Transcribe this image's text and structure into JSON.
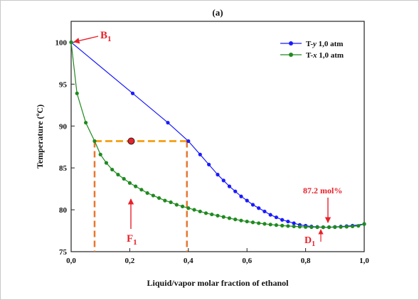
{
  "chart_data": {
    "type": "line",
    "title": "(a)",
    "xlabel": "Liquid/vapor molar fraction of ethanol",
    "ylabel": "Temperature (ºC)",
    "xlim": [
      0,
      1
    ],
    "ylim": [
      75,
      102.5
    ],
    "x_ticks": [
      "0,0",
      "0,2",
      "0,4",
      "0,6",
      "0,8",
      "1,0"
    ],
    "y_ticks": [
      "75",
      "80",
      "85",
      "90",
      "95",
      "100"
    ],
    "legend_position": "top-right",
    "series": [
      {
        "name": "T-y 1,0 atm",
        "legend_prefix": "T-",
        "legend_var": "y",
        "legend_suffix": " 1,0 atm",
        "color": "#1a1aff",
        "x": [
          0.0,
          0.21,
          0.33,
          0.4,
          0.44,
          0.47,
          0.5,
          0.52,
          0.54,
          0.56,
          0.58,
          0.6,
          0.62,
          0.64,
          0.66,
          0.68,
          0.7,
          0.72,
          0.74,
          0.76,
          0.78,
          0.8,
          0.82,
          0.84,
          0.86,
          0.88,
          0.9,
          0.92,
          0.94,
          0.96,
          1.0
        ],
        "y": [
          100.0,
          93.9,
          90.4,
          88.2,
          86.6,
          85.4,
          84.2,
          83.5,
          82.8,
          82.2,
          81.6,
          81.1,
          80.6,
          80.2,
          79.8,
          79.4,
          79.1,
          78.8,
          78.6,
          78.4,
          78.2,
          78.1,
          78.0,
          77.95,
          77.92,
          77.92,
          77.95,
          78.0,
          78.05,
          78.1,
          78.3
        ]
      },
      {
        "name": "T-x 1,0 atm",
        "legend_prefix": "T-",
        "legend_var": "x",
        "legend_suffix": " 1,0 atm",
        "color": "#1f8a1f",
        "x": [
          0.0,
          0.02,
          0.05,
          0.08,
          0.1,
          0.12,
          0.14,
          0.16,
          0.18,
          0.2,
          0.22,
          0.24,
          0.26,
          0.28,
          0.3,
          0.32,
          0.34,
          0.36,
          0.38,
          0.4,
          0.42,
          0.44,
          0.46,
          0.48,
          0.5,
          0.52,
          0.54,
          0.56,
          0.58,
          0.6,
          0.62,
          0.64,
          0.66,
          0.68,
          0.7,
          0.72,
          0.74,
          0.76,
          0.78,
          0.8,
          0.82,
          0.84,
          0.86,
          0.88,
          0.9,
          0.92,
          0.94,
          0.96,
          0.98,
          1.0
        ],
        "y": [
          100.0,
          93.9,
          90.4,
          88.2,
          86.6,
          85.6,
          84.8,
          84.2,
          83.7,
          83.2,
          82.8,
          82.4,
          82.0,
          81.7,
          81.4,
          81.1,
          80.9,
          80.6,
          80.4,
          80.2,
          80.0,
          79.8,
          79.6,
          79.45,
          79.3,
          79.15,
          79.0,
          78.85,
          78.72,
          78.6,
          78.5,
          78.4,
          78.32,
          78.24,
          78.17,
          78.11,
          78.06,
          78.02,
          77.98,
          77.95,
          77.93,
          77.92,
          77.92,
          77.92,
          77.93,
          77.95,
          77.98,
          78.02,
          78.08,
          78.3
        ]
      }
    ],
    "tie_line": {
      "x1": 0.08,
      "x2": 0.395,
      "y": 88.2,
      "color": "#f5a623",
      "drop_color": "#e8772e"
    },
    "feed_point": {
      "x": 0.205,
      "y": 88.2
    },
    "annotations": {
      "b1_main": "B",
      "b1_sub": "1",
      "f1_main": "F",
      "f1_sub": "1",
      "d1_main": "D",
      "d1_sub": "1",
      "azeotrope": "87.2 mol%"
    }
  }
}
